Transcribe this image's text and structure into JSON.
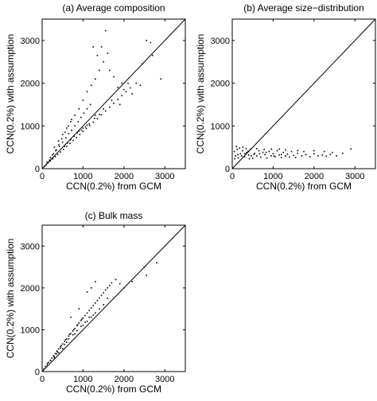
{
  "chart_data": [
    {
      "type": "scatter",
      "title": "(a) Average composition",
      "xlabel": "CCN(0.2%) from GCM",
      "ylabel": "CCN(0.2%) with assumption",
      "xlim": [
        0,
        3500
      ],
      "ylim": [
        0,
        3500
      ],
      "xticks": [
        "0",
        "1000",
        "2000",
        "3000"
      ],
      "yticks": [
        "0",
        "1000",
        "2000",
        "3000"
      ],
      "reference_line": "1:1",
      "points": [
        [
          60,
          55
        ],
        [
          100,
          95
        ],
        [
          150,
          140
        ],
        [
          200,
          180
        ],
        [
          260,
          230
        ],
        [
          320,
          280
        ],
        [
          380,
          330
        ],
        [
          450,
          390
        ],
        [
          520,
          450
        ],
        [
          600,
          520
        ],
        [
          680,
          590
        ],
        [
          760,
          660
        ],
        [
          840,
          730
        ],
        [
          920,
          800
        ],
        [
          1000,
          870
        ],
        [
          1080,
          940
        ],
        [
          1160,
          1010
        ],
        [
          1250,
          1090
        ],
        [
          1350,
          1170
        ],
        [
          1450,
          1260
        ],
        [
          1550,
          1350
        ],
        [
          1650,
          1440
        ],
        [
          1750,
          1530
        ],
        [
          1850,
          1620
        ],
        [
          1950,
          1710
        ],
        [
          2050,
          1800
        ],
        [
          2150,
          1890
        ],
        [
          120,
          150
        ],
        [
          200,
          260
        ],
        [
          280,
          350
        ],
        [
          350,
          440
        ],
        [
          420,
          520
        ],
        [
          500,
          620
        ],
        [
          580,
          720
        ],
        [
          650,
          820
        ],
        [
          720,
          900
        ],
        [
          800,
          1000
        ],
        [
          880,
          1100
        ],
        [
          950,
          1200
        ],
        [
          1020,
          1300
        ],
        [
          1100,
          1400
        ],
        [
          1180,
          1500
        ],
        [
          300,
          500
        ],
        [
          400,
          650
        ],
        [
          500,
          800
        ],
        [
          600,
          950
        ],
        [
          700,
          1100
        ],
        [
          800,
          1250
        ],
        [
          900,
          1400
        ],
        [
          1000,
          1600
        ],
        [
          1100,
          1800
        ],
        [
          1200,
          1950
        ],
        [
          1300,
          2100
        ],
        [
          1400,
          2300
        ],
        [
          1500,
          2500
        ],
        [
          1600,
          2700
        ],
        [
          1350,
          2650
        ],
        [
          1450,
          2850
        ],
        [
          1250,
          2850
        ],
        [
          1650,
          2300
        ],
        [
          1750,
          2150
        ],
        [
          1850,
          1900
        ],
        [
          1950,
          2000
        ],
        [
          2100,
          2000
        ],
        [
          2300,
          2000
        ],
        [
          2450,
          2450
        ],
        [
          2550,
          3000
        ],
        [
          2650,
          2950
        ],
        [
          2700,
          2650
        ],
        [
          2900,
          2100
        ],
        [
          1550,
          3230
        ],
        [
          250,
          320
        ],
        [
          330,
          420
        ],
        [
          410,
          560
        ],
        [
          480,
          700
        ],
        [
          560,
          850
        ],
        [
          640,
          1000
        ],
        [
          720,
          1150
        ],
        [
          180,
          200
        ],
        [
          240,
          240
        ],
        [
          550,
          520
        ],
        [
          620,
          600
        ],
        [
          700,
          680
        ],
        [
          780,
          760
        ],
        [
          860,
          840
        ],
        [
          960,
          900
        ],
        [
          1060,
          980
        ],
        [
          1150,
          1050
        ],
        [
          1280,
          1180
        ],
        [
          1400,
          1270
        ],
        [
          1700,
          1600
        ],
        [
          2000,
          1850
        ],
        [
          1900,
          1500
        ],
        [
          2200,
          1750
        ],
        [
          2400,
          1950
        ],
        [
          1300,
          1250
        ],
        [
          1500,
          1400
        ],
        [
          1000,
          950
        ],
        [
          900,
          880
        ],
        [
          1100,
          1020
        ]
      ]
    },
    {
      "type": "scatter",
      "title": "(b) Average size−distribution",
      "xlabel": "CCN(0.2%) from GCM",
      "ylabel": "CCN(0.2%) with assumption",
      "xlim": [
        0,
        3500
      ],
      "ylim": [
        0,
        3500
      ],
      "xticks": [
        "0",
        "1000",
        "2000",
        "3000"
      ],
      "yticks": [
        "0",
        "1000",
        "2000",
        "3000"
      ],
      "reference_line": "1:1",
      "points": [
        [
          50,
          400
        ],
        [
          80,
          300
        ],
        [
          120,
          450
        ],
        [
          150,
          250
        ],
        [
          200,
          350
        ],
        [
          250,
          420
        ],
        [
          300,
          280
        ],
        [
          350,
          380
        ],
        [
          400,
          320
        ],
        [
          450,
          460
        ],
        [
          500,
          240
        ],
        [
          550,
          360
        ],
        [
          600,
          300
        ],
        [
          650,
          420
        ],
        [
          700,
          270
        ],
        [
          750,
          380
        ],
        [
          800,
          330
        ],
        [
          850,
          250
        ],
        [
          900,
          400
        ],
        [
          950,
          300
        ],
        [
          1000,
          350
        ],
        [
          1050,
          280
        ],
        [
          1100,
          420
        ],
        [
          1150,
          320
        ],
        [
          1200,
          260
        ],
        [
          1250,
          380
        ],
        [
          1300,
          300
        ],
        [
          1350,
          340
        ],
        [
          1400,
          270
        ],
        [
          1450,
          400
        ],
        [
          1500,
          310
        ],
        [
          1550,
          260
        ],
        [
          1600,
          360
        ],
        [
          1700,
          300
        ],
        [
          1800,
          330
        ],
        [
          1900,
          280
        ],
        [
          2000,
          350
        ],
        [
          2100,
          300
        ],
        [
          2200,
          320
        ],
        [
          2300,
          290
        ],
        [
          2400,
          330
        ],
        [
          2550,
          300
        ],
        [
          2700,
          360
        ],
        [
          2900,
          460
        ],
        [
          100,
          520
        ],
        [
          180,
          480
        ],
        [
          260,
          500
        ],
        [
          340,
          470
        ],
        [
          60,
          230
        ],
        [
          420,
          230
        ],
        [
          600,
          470
        ],
        [
          780,
          450
        ],
        [
          960,
          460
        ],
        [
          1150,
          460
        ],
        [
          1300,
          440
        ],
        [
          1600,
          420
        ],
        [
          1750,
          400
        ],
        [
          2000,
          420
        ],
        [
          2250,
          400
        ],
        [
          2450,
          380
        ],
        [
          140,
          330
        ],
        [
          230,
          300
        ],
        [
          310,
          350
        ],
        [
          390,
          410
        ],
        [
          470,
          300
        ],
        [
          530,
          330
        ],
        [
          670,
          350
        ],
        [
          830,
          380
        ],
        [
          1020,
          300
        ],
        [
          1200,
          330
        ]
      ]
    },
    {
      "type": "scatter",
      "title": "(c) Bulk mass",
      "xlabel": "CCN(0.2%) from GCM",
      "ylabel": "CCN(0.2%) with assumption",
      "xlim": [
        0,
        3500
      ],
      "ylim": [
        0,
        3500
      ],
      "xticks": [
        "0",
        "1000",
        "2000",
        "3000"
      ],
      "yticks": [
        "0",
        "1000",
        "2000",
        "3000"
      ],
      "reference_line": "1:1",
      "points": [
        [
          40,
          60
        ],
        [
          80,
          120
        ],
        [
          120,
          160
        ],
        [
          160,
          220
        ],
        [
          200,
          270
        ],
        [
          240,
          320
        ],
        [
          280,
          380
        ],
        [
          320,
          430
        ],
        [
          360,
          490
        ],
        [
          400,
          540
        ],
        [
          450,
          600
        ],
        [
          500,
          660
        ],
        [
          550,
          720
        ],
        [
          600,
          780
        ],
        [
          650,
          850
        ],
        [
          700,
          910
        ],
        [
          750,
          970
        ],
        [
          800,
          1030
        ],
        [
          850,
          1100
        ],
        [
          900,
          1160
        ],
        [
          950,
          1220
        ],
        [
          1000,
          1280
        ],
        [
          1050,
          1340
        ],
        [
          1100,
          1400
        ],
        [
          1150,
          1460
        ],
        [
          1200,
          1520
        ],
        [
          1250,
          1580
        ],
        [
          1300,
          1640
        ],
        [
          1350,
          1700
        ],
        [
          1400,
          1760
        ],
        [
          1450,
          1820
        ],
        [
          1500,
          1880
        ],
        [
          1550,
          1950
        ],
        [
          1600,
          2000
        ],
        [
          1650,
          2060
        ],
        [
          1700,
          2120
        ],
        [
          1800,
          2200
        ],
        [
          1900,
          2100
        ],
        [
          2000,
          2000
        ],
        [
          2200,
          2150
        ],
        [
          2500,
          2500
        ],
        [
          2550,
          2300
        ],
        [
          2800,
          2600
        ],
        [
          1100,
          1900
        ],
        [
          1200,
          2000
        ],
        [
          1300,
          2150
        ],
        [
          900,
          1500
        ],
        [
          700,
          1300
        ],
        [
          1000,
          1100
        ],
        [
          1100,
          1200
        ],
        [
          800,
          900
        ],
        [
          600,
          700
        ],
        [
          500,
          550
        ],
        [
          400,
          450
        ],
        [
          300,
          330
        ],
        [
          1200,
          1300
        ],
        [
          1300,
          1400
        ],
        [
          1400,
          1500
        ],
        [
          1500,
          1600
        ],
        [
          1600,
          1750
        ],
        [
          350,
          420
        ],
        [
          450,
          560
        ],
        [
          550,
          650
        ],
        [
          650,
          780
        ],
        [
          750,
          880
        ],
        [
          850,
          980
        ],
        [
          950,
          1080
        ],
        [
          1050,
          1180
        ],
        [
          1150,
          1300
        ],
        [
          1250,
          1350
        ],
        [
          130,
          200
        ],
        [
          210,
          260
        ],
        [
          290,
          360
        ],
        [
          370,
          470
        ],
        [
          470,
          620
        ],
        [
          570,
          760
        ],
        [
          670,
          890
        ],
        [
          770,
          1000
        ],
        [
          870,
          1120
        ],
        [
          970,
          1250
        ]
      ]
    }
  ]
}
